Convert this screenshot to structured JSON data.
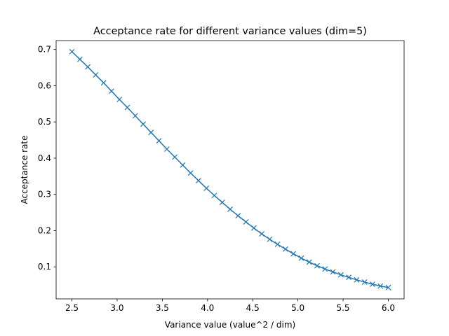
{
  "chart_data": {
    "type": "line",
    "title": "Acceptance rate for different variance values (dim=5)",
    "xlabel": "Variance value (value^2 / dim)",
    "ylabel": "Acceptance rate",
    "xlim": [
      2.325,
      6.175
    ],
    "ylim": [
      0.0115,
      0.7245
    ],
    "xticks": [
      "2.5",
      "3.0",
      "3.5",
      "4.0",
      "4.5",
      "5.0",
      "5.5",
      "6.0"
    ],
    "yticks": [
      "0.1",
      "0.2",
      "0.3",
      "0.4",
      "0.5",
      "0.6",
      "0.7"
    ],
    "grid": false,
    "marker": "x",
    "color": "#1f77b4",
    "series": [
      {
        "x": [
          2.5,
          2.5875,
          2.675,
          2.7625,
          2.85,
          2.9375,
          3.025,
          3.1125,
          3.2,
          3.2875,
          3.375,
          3.4625,
          3.55,
          3.6375,
          3.725,
          3.8125,
          3.9,
          3.9875,
          4.075,
          4.1625,
          4.25,
          4.3375,
          4.425,
          4.5125,
          4.6,
          4.6875,
          4.775,
          4.8625,
          4.95,
          5.0375,
          5.125,
          5.2125,
          5.3,
          5.3875,
          5.475,
          5.5625,
          5.65,
          5.7375,
          5.825,
          5.9125,
          6.0
        ],
        "y": [
          0.694,
          0.673,
          0.652,
          0.63,
          0.608,
          0.585,
          0.562,
          0.54,
          0.517,
          0.494,
          0.471,
          0.448,
          0.425,
          0.403,
          0.381,
          0.359,
          0.338,
          0.317,
          0.297,
          0.278,
          0.259,
          0.241,
          0.224,
          0.207,
          0.191,
          0.176,
          0.162,
          0.149,
          0.136,
          0.124,
          0.113,
          0.103,
          0.094,
          0.086,
          0.078,
          0.071,
          0.064,
          0.058,
          0.052,
          0.047,
          0.043
        ]
      }
    ]
  }
}
